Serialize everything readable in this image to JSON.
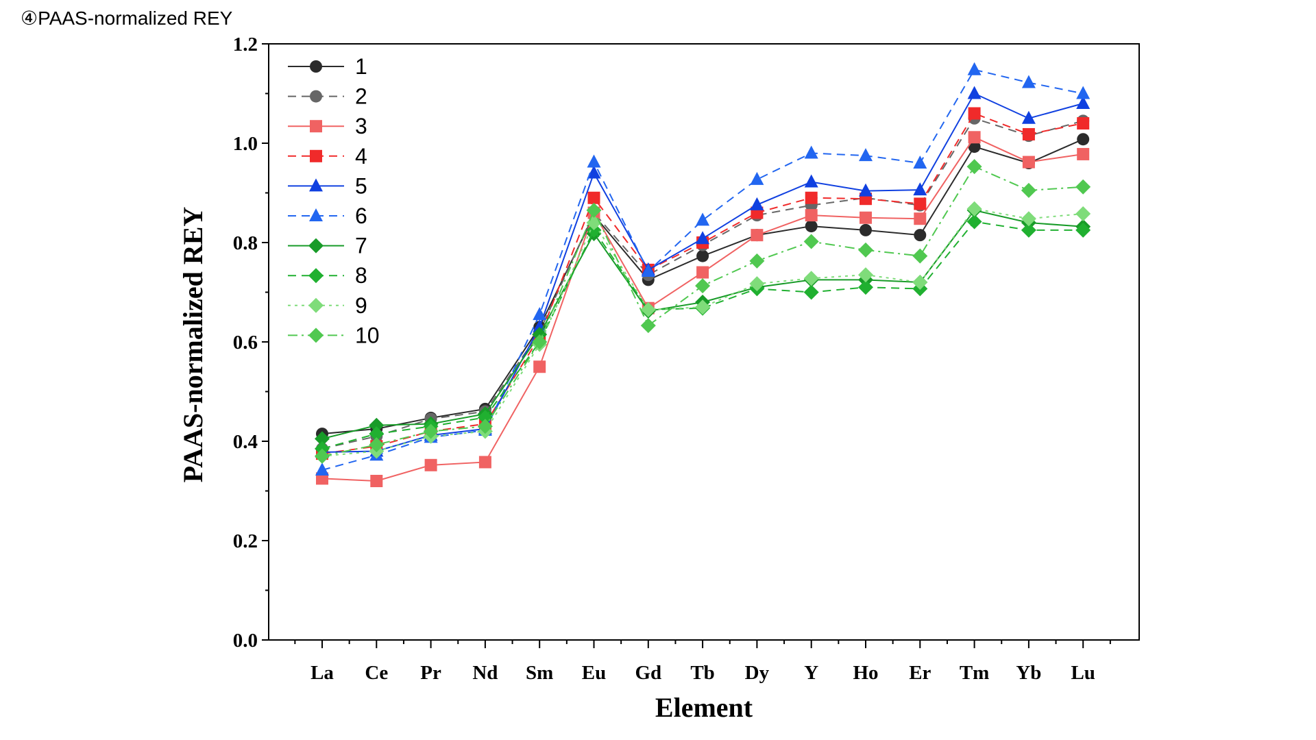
{
  "page": {
    "title": "④PAAS-normalized REY"
  },
  "chart_data": {
    "type": "line",
    "title": "",
    "xlabel": "Element",
    "ylabel": "PAAS-normalized REY",
    "ylim": [
      0,
      1.2
    ],
    "yticks": [
      "0.0",
      "0.2",
      "0.4",
      "0.6",
      "0.8",
      "1.0",
      "1.2"
    ],
    "categories": [
      "La",
      "Ce",
      "Pr",
      "Nd",
      "Sm",
      "Eu",
      "Gd",
      "Tb",
      "Dy",
      "Y",
      "Ho",
      "Er",
      "Tm",
      "Yb",
      "Lu"
    ],
    "grid": false,
    "legend_position": "top-left",
    "series": [
      {
        "name": "1",
        "color": "#2b2b2b",
        "line": "solid",
        "marker": "circle",
        "values": [
          0.415,
          0.425,
          0.447,
          0.465,
          0.63,
          0.855,
          0.725,
          0.773,
          0.815,
          0.833,
          0.825,
          0.815,
          0.993,
          0.96,
          1.008
        ]
      },
      {
        "name": "2",
        "color": "#666666",
        "line": "dashed",
        "marker": "circle",
        "values": [
          0.385,
          0.41,
          0.445,
          0.46,
          0.62,
          0.86,
          0.735,
          0.795,
          0.855,
          0.875,
          0.89,
          0.875,
          1.05,
          1.015,
          1.045
        ]
      },
      {
        "name": "3",
        "color": "#f06262",
        "line": "solid",
        "marker": "square",
        "values": [
          0.325,
          0.32,
          0.352,
          0.358,
          0.55,
          0.86,
          0.668,
          0.74,
          0.815,
          0.855,
          0.85,
          0.848,
          1.012,
          0.962,
          0.978
        ]
      },
      {
        "name": "4",
        "color": "#f02a2a",
        "line": "dashed",
        "marker": "square",
        "values": [
          0.375,
          0.39,
          0.42,
          0.435,
          0.61,
          0.89,
          0.745,
          0.8,
          0.86,
          0.89,
          0.888,
          0.878,
          1.06,
          1.018,
          1.04
        ]
      },
      {
        "name": "5",
        "color": "#1040e0",
        "line": "solid",
        "marker": "triangle",
        "values": [
          0.378,
          0.38,
          0.412,
          0.425,
          0.63,
          0.94,
          0.745,
          0.808,
          0.876,
          0.922,
          0.904,
          0.906,
          1.1,
          1.05,
          1.08
        ]
      },
      {
        "name": "6",
        "color": "#2266f0",
        "line": "dashed",
        "marker": "triangle",
        "values": [
          0.342,
          0.372,
          0.408,
          0.422,
          0.655,
          0.962,
          0.742,
          0.845,
          0.927,
          0.98,
          0.975,
          0.96,
          1.148,
          1.122,
          1.1
        ]
      },
      {
        "name": "7",
        "color": "#189b28",
        "line": "solid",
        "marker": "diamond",
        "values": [
          0.405,
          0.432,
          0.435,
          0.455,
          0.615,
          0.818,
          0.662,
          0.68,
          0.71,
          0.725,
          0.725,
          0.72,
          0.865,
          0.84,
          0.832
        ]
      },
      {
        "name": "8",
        "color": "#20b030",
        "line": "dashed",
        "marker": "diamond",
        "values": [
          0.385,
          0.415,
          0.43,
          0.448,
          0.6,
          0.825,
          0.665,
          0.668,
          0.707,
          0.7,
          0.71,
          0.707,
          0.842,
          0.825,
          0.825
        ]
      },
      {
        "name": "9",
        "color": "#7fdc7a",
        "line": "dotted",
        "marker": "diamond",
        "values": [
          0.37,
          0.38,
          0.41,
          0.42,
          0.595,
          0.84,
          0.665,
          0.67,
          0.717,
          0.728,
          0.735,
          0.72,
          0.868,
          0.848,
          0.858
        ]
      },
      {
        "name": "10",
        "color": "#50c850",
        "line": "dashdot",
        "marker": "diamond",
        "values": [
          0.37,
          0.393,
          0.42,
          0.43,
          0.6,
          0.865,
          0.633,
          0.713,
          0.763,
          0.802,
          0.785,
          0.773,
          0.953,
          0.905,
          0.912
        ]
      }
    ]
  }
}
